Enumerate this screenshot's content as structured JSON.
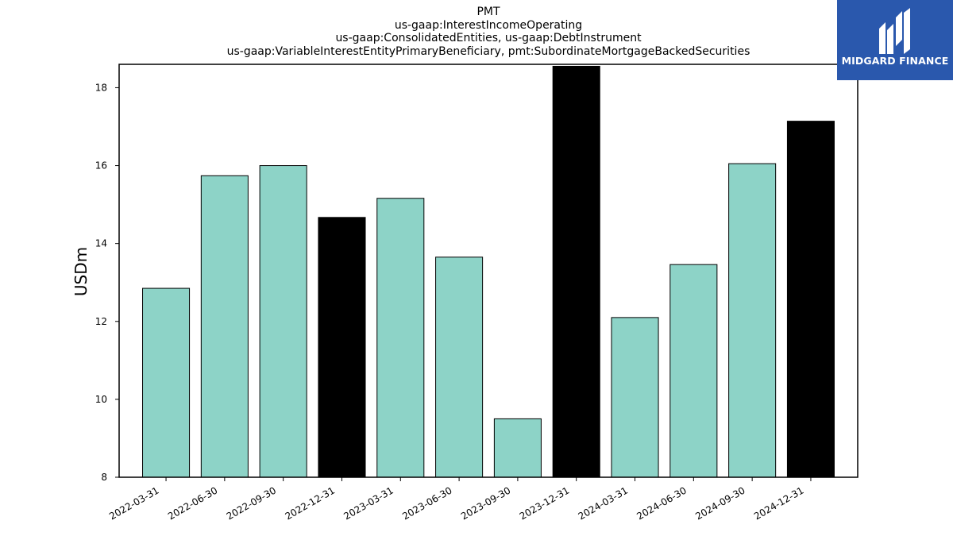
{
  "chart_data": {
    "type": "bar",
    "title_lines": [
      "PMT",
      "us-gaap:InterestIncomeOperating",
      "us-gaap:ConsolidatedEntities, us-gaap:DebtInstrument",
      "us-gaap:VariableInterestEntityPrimaryBeneficiary, pmt:SubordinateMortgageBackedSecurities"
    ],
    "ylabel": "USDm",
    "xlabel": "",
    "ylim": [
      8,
      18.6
    ],
    "yticks": [
      8,
      10,
      12,
      14,
      16,
      18
    ],
    "categories": [
      "2022-03-31",
      "2022-06-30",
      "2022-09-30",
      "2022-12-31",
      "2023-03-31",
      "2023-06-30",
      "2023-09-30",
      "2023-12-31",
      "2024-03-31",
      "2024-06-30",
      "2024-09-30",
      "2024-12-31"
    ],
    "values": [
      12.85,
      15.74,
      16.0,
      14.67,
      15.16,
      13.65,
      9.5,
      18.55,
      12.1,
      13.46,
      16.05,
      17.14
    ],
    "bar_colors": [
      "#8dd3c7",
      "#8dd3c7",
      "#8dd3c7",
      "#000000",
      "#8dd3c7",
      "#8dd3c7",
      "#8dd3c7",
      "#000000",
      "#8dd3c7",
      "#8dd3c7",
      "#8dd3c7",
      "#000000"
    ],
    "grid": false,
    "legend": "none"
  },
  "logo": {
    "text": "MIDGARD FINANCE",
    "background": "#2a58ad",
    "icon": "midgard-logo-icon"
  }
}
